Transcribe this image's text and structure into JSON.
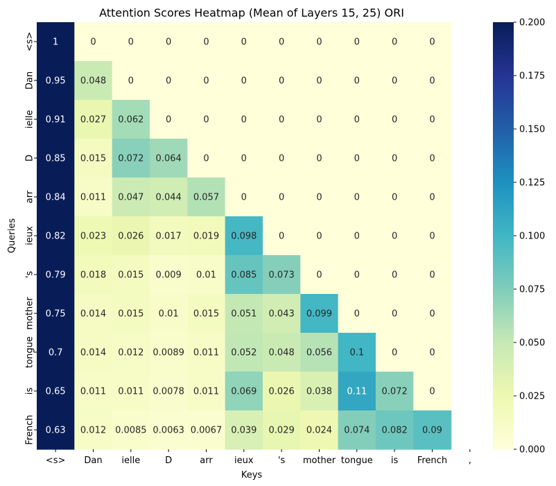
{
  "chart_data": {
    "type": "heatmap",
    "title": "Attention Scores Heatmap (Mean of Layers 15, 25) ORI",
    "xlabel": "Keys",
    "ylabel": "Queries",
    "x_categories": [
      "<s>",
      "Dan",
      "ielle",
      "D",
      "arr",
      "ieux",
      "'s",
      "mother",
      "tongue",
      "is",
      "French",
      ","
    ],
    "y_categories": [
      "<s>",
      "Dan",
      "ielle",
      "D",
      "arr",
      "ieux",
      "'s",
      "mother",
      "tongue",
      "is",
      "French"
    ],
    "values": [
      [
        1,
        0,
        0,
        0,
        0,
        0,
        0,
        0,
        0,
        0,
        0,
        null
      ],
      [
        0.95,
        0.048,
        0,
        0,
        0,
        0,
        0,
        0,
        0,
        0,
        0,
        null
      ],
      [
        0.91,
        0.027,
        0.062,
        0,
        0,
        0,
        0,
        0,
        0,
        0,
        0,
        null
      ],
      [
        0.85,
        0.015,
        0.072,
        0.064,
        0,
        0,
        0,
        0,
        0,
        0,
        0,
        null
      ],
      [
        0.84,
        0.011,
        0.047,
        0.044,
        0.057,
        0,
        0,
        0,
        0,
        0,
        0,
        null
      ],
      [
        0.82,
        0.023,
        0.026,
        0.017,
        0.019,
        0.098,
        0,
        0,
        0,
        0,
        0,
        null
      ],
      [
        0.79,
        0.018,
        0.015,
        0.009,
        0.01,
        0.085,
        0.073,
        0,
        0,
        0,
        0,
        null
      ],
      [
        0.75,
        0.014,
        0.015,
        0.01,
        0.015,
        0.051,
        0.043,
        0.099,
        0,
        0,
        0,
        null
      ],
      [
        0.7,
        0.014,
        0.012,
        0.0089,
        0.011,
        0.052,
        0.048,
        0.056,
        0.1,
        0,
        0,
        null
      ],
      [
        0.65,
        0.011,
        0.011,
        0.0078,
        0.011,
        0.069,
        0.026,
        0.038,
        0.11,
        0.072,
        0,
        null
      ],
      [
        0.63,
        0.012,
        0.0085,
        0.0063,
        0.0067,
        0.039,
        0.029,
        0.024,
        0.074,
        0.082,
        0.09,
        null
      ]
    ],
    "colorbar": {
      "min": 0,
      "max": 0.2,
      "ticks": [
        "0.000",
        "0.025",
        "0.050",
        "0.075",
        "0.100",
        "0.125",
        "0.150",
        "0.175",
        "0.200"
      ],
      "colormap": "YlGnBu",
      "colors": [
        "#ffffd9",
        "#edf8b1",
        "#c7e9b4",
        "#7fcdbb",
        "#41b6c4",
        "#1d91c0",
        "#225ea8",
        "#253494",
        "#081d58"
      ]
    }
  }
}
